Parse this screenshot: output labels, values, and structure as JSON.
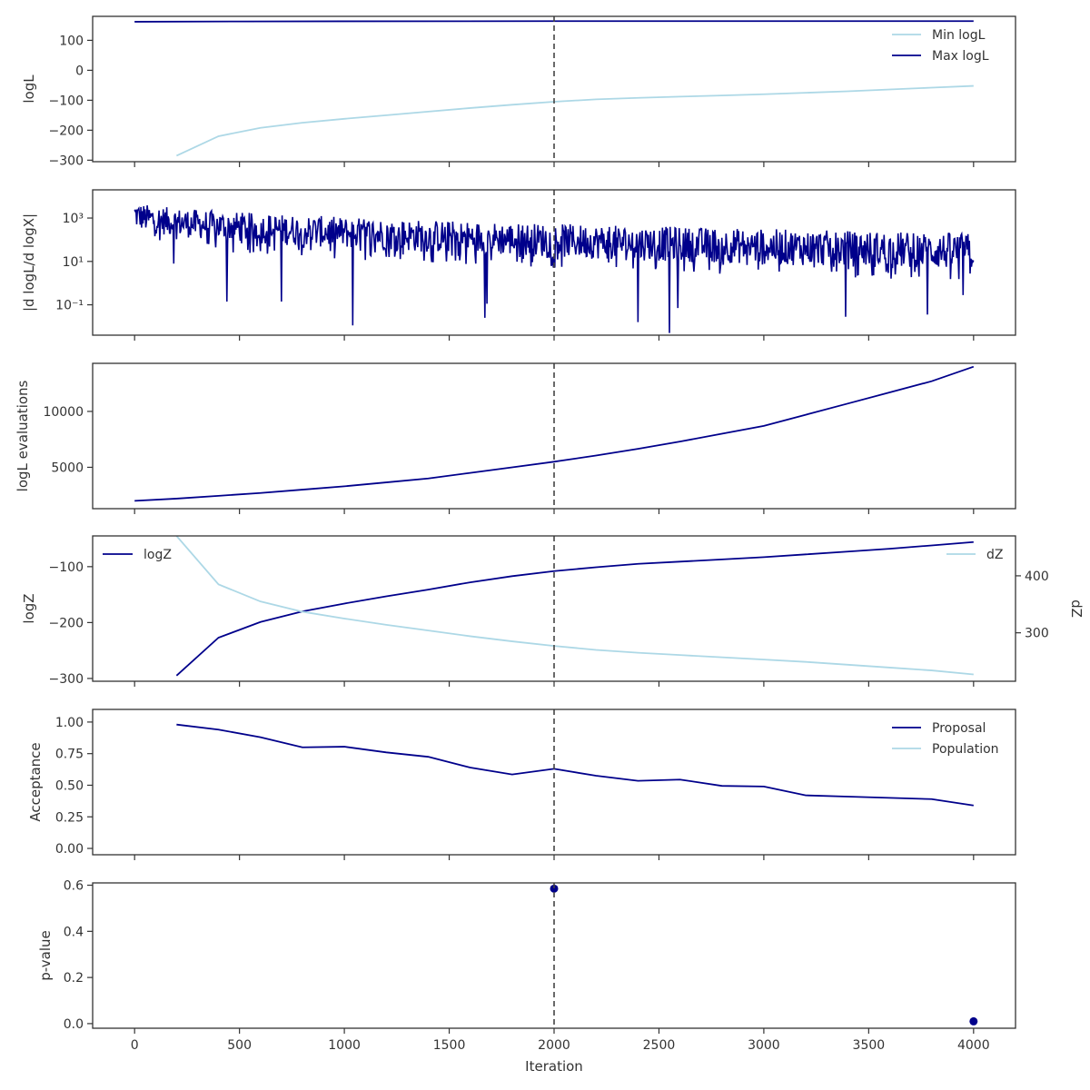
{
  "colors": {
    "dark": "#00008b",
    "light": "#add8e6",
    "vline": "#444444",
    "axis": "#333333"
  },
  "chart_data": [
    {
      "type": "line",
      "ylabel": "logL",
      "xlim": [
        -200,
        4200
      ],
      "ylim": [
        -305,
        180
      ],
      "yticks": [
        -300,
        -200,
        -100,
        0,
        100
      ],
      "ytick_labels": [
        "−300",
        "−200",
        "−100",
        "0",
        "100"
      ],
      "vline": 2000,
      "legend": "top-right",
      "series": [
        {
          "name": "Min logL",
          "color": "light",
          "x": [
            200,
            400,
            600,
            800,
            1000,
            1200,
            1400,
            1600,
            1800,
            2000,
            2200,
            2400,
            2600,
            2800,
            3000,
            3200,
            3400,
            3600,
            3800,
            4000
          ],
          "y": [
            -285,
            -220,
            -192,
            -175,
            -162,
            -150,
            -138,
            -126,
            -115,
            -105,
            -97,
            -92,
            -88,
            -84,
            -80,
            -75,
            -70,
            -64,
            -58,
            -52
          ]
        },
        {
          "name": "Max logL",
          "color": "dark",
          "x": [
            0,
            500,
            1000,
            2000,
            3000,
            4000
          ],
          "y": [
            162,
            163,
            163.5,
            164,
            164,
            164
          ]
        }
      ]
    },
    {
      "type": "line",
      "ylabel": "|d logL/d logX|",
      "yscale": "log",
      "xlim": [
        -200,
        4200
      ],
      "ylim_log10": [
        -2.4,
        4.3
      ],
      "yticks_log10": [
        -1,
        1,
        3
      ],
      "ytick_labels": [
        "10⁻¹",
        "10¹",
        "10³"
      ],
      "vline": 2000,
      "series": [
        {
          "name": "",
          "color": "dark",
          "x": [
            0,
            4000
          ],
          "envelope_high_log10": [
            3.8,
            2.3
          ],
          "envelope_low_log10": [
            2.6,
            0.6
          ],
          "dips_x": [
            185,
            440,
            700,
            1040,
            1680,
            1670,
            2400,
            2550,
            2590,
            3390,
            3780,
            3950
          ],
          "dips_log10": [
            0.9,
            -0.85,
            -0.85,
            -1.95,
            -0.95,
            -1.6,
            -1.8,
            -2.3,
            -1.15,
            -1.55,
            -1.45,
            -0.55
          ]
        }
      ]
    },
    {
      "type": "line",
      "ylabel": "logL evaluations",
      "xlim": [
        -200,
        4200
      ],
      "ylim": [
        1300,
        14300
      ],
      "yticks": [
        5000,
        10000
      ],
      "ytick_labels": [
        "5000",
        "10000"
      ],
      "vline": 2000,
      "series": [
        {
          "name": "",
          "color": "dark",
          "x": [
            0,
            200,
            400,
            600,
            800,
            1000,
            1200,
            1400,
            1600,
            1800,
            2000,
            2200,
            2400,
            2600,
            2800,
            3000,
            3200,
            3400,
            3600,
            3800,
            4000
          ],
          "y": [
            2000,
            2200,
            2450,
            2700,
            3000,
            3300,
            3650,
            4000,
            4500,
            5000,
            5500,
            6050,
            6650,
            7300,
            8000,
            8700,
            9700,
            10700,
            11700,
            12700,
            14000
          ]
        }
      ]
    },
    {
      "type": "line",
      "ylabel": "logZ",
      "ylabel_right": "dZ",
      "xlim": [
        -200,
        4200
      ],
      "ylim": [
        -305,
        -45
      ],
      "yticks": [
        -300,
        -200,
        -100
      ],
      "ytick_labels": [
        "−300",
        "−200",
        "−100"
      ],
      "ylim_right": [
        215,
        470
      ],
      "yticks_right": [
        300,
        400
      ],
      "ytick_labels_right": [
        "300",
        "400"
      ],
      "vline": 2000,
      "legend": "top-left",
      "legend_right": "top-right",
      "series": [
        {
          "name": "logZ",
          "color": "dark",
          "axis": "left",
          "x": [
            200,
            400,
            600,
            800,
            1000,
            1200,
            1400,
            1600,
            1800,
            2000,
            2200,
            2400,
            2600,
            2800,
            3000,
            3200,
            3400,
            3600,
            3800,
            4000
          ],
          "y": [
            -295,
            -227,
            -199,
            -180,
            -166,
            -153,
            -141,
            -128,
            -117,
            -108,
            -101,
            -95,
            -91,
            -87,
            -83,
            -78,
            -73,
            -68,
            -62,
            -56
          ]
        },
        {
          "name": "dZ",
          "color": "light",
          "axis": "right",
          "x": [
            200,
            400,
            600,
            800,
            1000,
            1200,
            1400,
            1600,
            1800,
            2000,
            2200,
            2400,
            2600,
            2800,
            3000,
            3200,
            3400,
            3600,
            3800,
            4000
          ],
          "y": [
            470,
            385,
            355,
            337,
            325,
            314,
            304,
            294,
            285,
            277,
            270,
            265,
            261,
            257,
            253,
            249,
            244,
            239,
            234,
            227
          ]
        }
      ]
    },
    {
      "type": "line",
      "ylabel": "Acceptance",
      "xlim": [
        -200,
        4200
      ],
      "ylim": [
        -0.05,
        1.1
      ],
      "yticks": [
        0,
        0.25,
        0.5,
        0.75,
        1
      ],
      "ytick_labels": [
        "0.00",
        "0.25",
        "0.50",
        "0.75",
        "1.00"
      ],
      "vline": 2000,
      "legend": "top-right",
      "series": [
        {
          "name": "Proposal",
          "color": "dark",
          "x": [
            200,
            400,
            600,
            800,
            1000,
            1200,
            1400,
            1600,
            1800,
            2000,
            2200,
            2400,
            2600,
            2800,
            3000,
            3200,
            3400,
            3600,
            3800,
            4000
          ],
          "y": [
            0.98,
            0.94,
            0.88,
            0.8,
            0.805,
            0.76,
            0.725,
            0.64,
            0.585,
            0.63,
            0.575,
            0.535,
            0.545,
            0.495,
            0.49,
            0.42,
            0.41,
            0.4,
            0.39,
            0.34
          ]
        },
        {
          "name": "Population",
          "color": "light",
          "x": [],
          "y": []
        }
      ]
    },
    {
      "type": "scatter",
      "ylabel": "p-value",
      "xlabel": "Iteration",
      "xlim": [
        -200,
        4200
      ],
      "ylim": [
        -0.02,
        0.61
      ],
      "yticks": [
        0,
        0.2,
        0.4,
        0.6
      ],
      "ytick_labels": [
        "0.0",
        "0.2",
        "0.4",
        "0.6"
      ],
      "xticks": [
        0,
        500,
        1000,
        1500,
        2000,
        2500,
        3000,
        3500,
        4000
      ],
      "xtick_labels": [
        "0",
        "500",
        "1000",
        "1500",
        "2000",
        "2500",
        "3000",
        "3500",
        "4000"
      ],
      "vline": 2000,
      "series": [
        {
          "name": "",
          "color": "dark",
          "x": [
            2000,
            4000
          ],
          "y": [
            0.585,
            0.01
          ]
        }
      ]
    }
  ]
}
